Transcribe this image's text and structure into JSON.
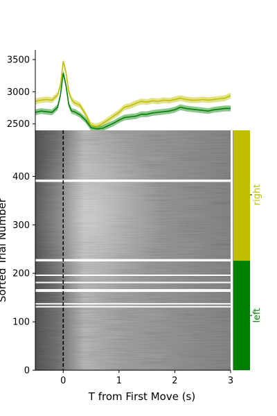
{
  "chart_data": [
    {
      "type": "line",
      "panel": "average-trace",
      "ylim": [
        2400,
        3650
      ],
      "xlim": [
        -0.5,
        3.0
      ],
      "y_ticks": [
        2500,
        3000,
        3500
      ],
      "y_tick_labels": [
        "2500",
        "3000",
        "3500"
      ],
      "series": [
        {
          "name": "right",
          "color": "#bfbf00",
          "x": [
            -0.5,
            -0.4,
            -0.3,
            -0.2,
            -0.1,
            -0.05,
            0,
            0.05,
            0.1,
            0.15,
            0.2,
            0.3,
            0.4,
            0.5,
            0.6,
            0.7,
            0.8,
            0.9,
            1.0,
            1.1,
            1.2,
            1.3,
            1.4,
            1.5,
            1.6,
            1.7,
            1.8,
            1.9,
            2.0,
            2.1,
            2.2,
            2.3,
            2.4,
            2.5,
            2.6,
            2.7,
            2.8,
            2.9,
            3.0
          ],
          "y": [
            2850,
            2870,
            2880,
            2870,
            2950,
            3100,
            3470,
            3300,
            3000,
            2880,
            2830,
            2790,
            2650,
            2480,
            2460,
            2500,
            2560,
            2620,
            2680,
            2760,
            2780,
            2820,
            2850,
            2840,
            2860,
            2850,
            2870,
            2860,
            2880,
            2900,
            2880,
            2870,
            2870,
            2880,
            2870,
            2880,
            2890,
            2900,
            2940
          ],
          "band": 45
        },
        {
          "name": "left",
          "color": "#008000",
          "x": [
            -0.5,
            -0.4,
            -0.3,
            -0.2,
            -0.1,
            -0.05,
            0,
            0.05,
            0.1,
            0.15,
            0.2,
            0.3,
            0.4,
            0.5,
            0.6,
            0.7,
            0.8,
            0.9,
            1.0,
            1.1,
            1.2,
            1.3,
            1.4,
            1.5,
            1.6,
            1.7,
            1.8,
            1.9,
            2.0,
            2.1,
            2.2,
            2.3,
            2.4,
            2.5,
            2.6,
            2.7,
            2.8,
            2.9,
            3.0
          ],
          "y": [
            2680,
            2700,
            2690,
            2680,
            2760,
            2950,
            3290,
            3100,
            2800,
            2700,
            2690,
            2640,
            2560,
            2440,
            2420,
            2430,
            2470,
            2510,
            2560,
            2600,
            2610,
            2620,
            2650,
            2650,
            2670,
            2680,
            2690,
            2700,
            2720,
            2760,
            2740,
            2730,
            2720,
            2710,
            2700,
            2720,
            2730,
            2740,
            2740
          ],
          "band": 45
        }
      ]
    },
    {
      "type": "heatmap",
      "panel": "trial-raster",
      "xlabel": "T from First Move (s)",
      "ylabel": "Sorted Trial Number",
      "xlim": [
        -0.5,
        3.0
      ],
      "ylim": [
        0,
        495
      ],
      "x_ticks": [
        0,
        1,
        2,
        3
      ],
      "x_tick_labels": [
        "0",
        "1",
        "2",
        "3"
      ],
      "y_ticks": [
        0,
        100,
        200,
        300,
        400
      ],
      "y_tick_labels": [
        "0",
        "100",
        "200",
        "300",
        "400"
      ],
      "colormap": "gray",
      "event_line_x": 0,
      "gap_rows": [
        131,
        137,
        163,
        166,
        181,
        196,
        226,
        228,
        390,
        392
      ],
      "blocks": [
        {
          "label": "left",
          "color": "#008000",
          "range": [
            0,
            226
          ],
          "label_y": 113
        },
        {
          "label": "right",
          "color": "#bfbf00",
          "range": [
            226,
            495
          ],
          "label_y": 362
        }
      ]
    }
  ]
}
